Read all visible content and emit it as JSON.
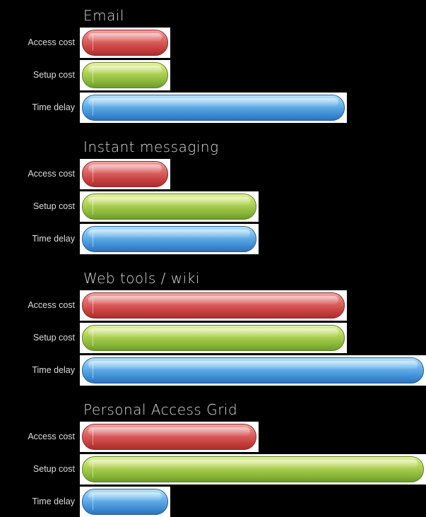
{
  "chart_data": {
    "type": "bar",
    "orientation": "horizontal",
    "title": "",
    "xlabel": "",
    "ylabel": "",
    "xlim": [
      0,
      4
    ],
    "grid": false,
    "legend": "none",
    "categories": [
      "Access cost",
      "Setup cost",
      "Time delay"
    ],
    "colors": {
      "Access cost": "#d24b4b",
      "Setup cost": "#9cc544",
      "Time delay": "#4b9ee0",
      "background": "#000000",
      "bar_frame": "#ffffff"
    },
    "groups": [
      {
        "name": "Email",
        "bars": [
          {
            "label": "Access cost",
            "value": 1
          },
          {
            "label": "Setup cost",
            "value": 1
          },
          {
            "label": "Time delay",
            "value": 3
          }
        ]
      },
      {
        "name": "Instant messaging",
        "bars": [
          {
            "label": "Access cost",
            "value": 1
          },
          {
            "label": "Setup cost",
            "value": 2
          },
          {
            "label": "Time delay",
            "value": 2
          }
        ]
      },
      {
        "name": "Web tools / wiki",
        "bars": [
          {
            "label": "Access cost",
            "value": 3
          },
          {
            "label": "Setup cost",
            "value": 3
          },
          {
            "label": "Time delay",
            "value": 4
          }
        ]
      },
      {
        "name": "Personal Access Grid",
        "bars": [
          {
            "label": "Access cost",
            "value": 2
          },
          {
            "label": "Setup cost",
            "value": 4
          },
          {
            "label": "Time delay",
            "value": 1
          }
        ]
      }
    ]
  }
}
